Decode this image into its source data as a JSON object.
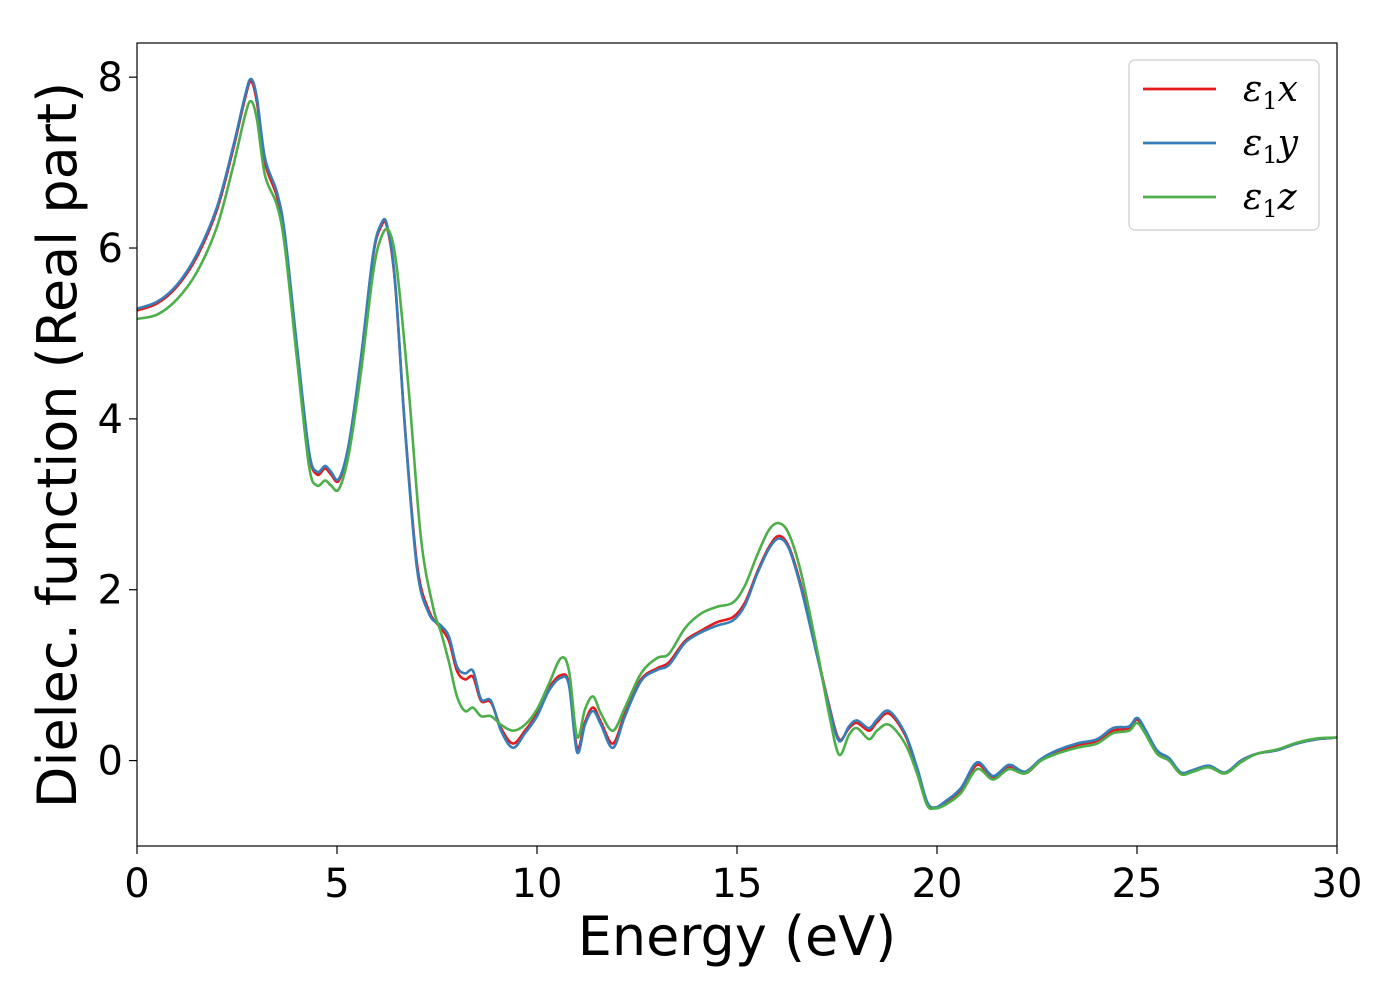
{
  "chart_data": {
    "type": "line",
    "title": "",
    "xlabel": "Energy (eV)",
    "ylabel": "Dielec. function (Real part)",
    "xlim": [
      0,
      30
    ],
    "ylim": [
      -1.0,
      8.4
    ],
    "xticks": [
      0,
      5,
      10,
      15,
      20,
      25,
      30
    ],
    "yticks": [
      0,
      2,
      4,
      6,
      8
    ],
    "xtick_labels": [
      "0",
      "5",
      "10",
      "15",
      "20",
      "25",
      "30"
    ],
    "ytick_labels": [
      "0",
      "2",
      "4",
      "6",
      "8"
    ],
    "grid": false,
    "legend_position": "top-right",
    "series": [
      {
        "name": "ε1x",
        "legend_base": "ε",
        "legend_sub": "1",
        "legend_suffix": "x",
        "color": "#e41a1c",
        "x": [
          0,
          0.5,
          1.0,
          1.5,
          2.0,
          2.4,
          2.7,
          2.85,
          3.0,
          3.2,
          3.5,
          3.7,
          4.0,
          4.3,
          4.5,
          4.7,
          4.85,
          5.05,
          5.3,
          5.6,
          5.9,
          6.1,
          6.25,
          6.45,
          6.7,
          7.0,
          7.3,
          7.6,
          7.8,
          8.0,
          8.2,
          8.4,
          8.6,
          8.85,
          9.1,
          9.4,
          9.7,
          10.0,
          10.3,
          10.6,
          10.8,
          11.0,
          11.2,
          11.4,
          11.6,
          11.9,
          12.2,
          12.6,
          13.0,
          13.3,
          13.7,
          14.1,
          14.5,
          14.9,
          15.2,
          15.5,
          15.8,
          16.05,
          16.3,
          16.6,
          17.0,
          17.3,
          17.55,
          17.8,
          18.0,
          18.3,
          18.5,
          18.8,
          19.2,
          19.5,
          19.75,
          19.95,
          20.2,
          20.6,
          21.0,
          21.4,
          21.8,
          22.2,
          22.6,
          23.0,
          23.5,
          24.0,
          24.4,
          24.8,
          25.0,
          25.2,
          25.5,
          25.8,
          26.1,
          26.4,
          26.8,
          27.2,
          27.6,
          28.0,
          28.5,
          29.0,
          29.5,
          30.0
        ],
        "y": [
          5.27,
          5.35,
          5.55,
          5.9,
          6.45,
          7.15,
          7.75,
          7.95,
          7.7,
          7.0,
          6.6,
          6.1,
          4.8,
          3.6,
          3.35,
          3.42,
          3.35,
          3.28,
          3.7,
          4.7,
          5.9,
          6.25,
          6.25,
          5.6,
          3.9,
          2.3,
          1.75,
          1.55,
          1.4,
          1.05,
          0.95,
          0.98,
          0.7,
          0.68,
          0.38,
          0.2,
          0.35,
          0.55,
          0.85,
          1.0,
          0.9,
          0.15,
          0.45,
          0.62,
          0.45,
          0.2,
          0.55,
          0.95,
          1.08,
          1.15,
          1.4,
          1.52,
          1.62,
          1.68,
          1.85,
          2.2,
          2.5,
          2.63,
          2.5,
          2.05,
          1.25,
          0.65,
          0.25,
          0.38,
          0.44,
          0.35,
          0.45,
          0.55,
          0.3,
          -0.1,
          -0.5,
          -0.55,
          -0.5,
          -0.35,
          -0.05,
          -0.2,
          -0.07,
          -0.15,
          0.0,
          0.1,
          0.18,
          0.23,
          0.35,
          0.38,
          0.48,
          0.35,
          0.1,
          0.02,
          -0.15,
          -0.12,
          -0.07,
          -0.15,
          0.0,
          0.08,
          0.12,
          0.2,
          0.25,
          0.27
        ]
      },
      {
        "name": "ε1y",
        "legend_base": "ε",
        "legend_sub": "1",
        "legend_suffix": "y",
        "color": "#377eb8",
        "x": [
          0,
          0.5,
          1.0,
          1.5,
          2.0,
          2.4,
          2.7,
          2.85,
          3.0,
          3.2,
          3.5,
          3.7,
          4.0,
          4.3,
          4.5,
          4.7,
          4.85,
          5.05,
          5.3,
          5.6,
          5.9,
          6.1,
          6.25,
          6.45,
          6.7,
          7.0,
          7.3,
          7.6,
          7.8,
          8.0,
          8.2,
          8.4,
          8.6,
          8.85,
          9.1,
          9.4,
          9.7,
          10.0,
          10.3,
          10.6,
          10.8,
          11.0,
          11.2,
          11.4,
          11.6,
          11.9,
          12.2,
          12.6,
          13.0,
          13.3,
          13.7,
          14.1,
          14.5,
          14.9,
          15.2,
          15.5,
          15.8,
          16.05,
          16.3,
          16.6,
          17.0,
          17.3,
          17.55,
          17.8,
          18.0,
          18.3,
          18.5,
          18.8,
          19.2,
          19.5,
          19.75,
          19.95,
          20.2,
          20.6,
          21.0,
          21.4,
          21.8,
          22.2,
          22.6,
          23.0,
          23.5,
          24.0,
          24.4,
          24.8,
          25.0,
          25.2,
          25.5,
          25.8,
          26.1,
          26.4,
          26.8,
          27.2,
          27.6,
          28.0,
          28.5,
          29.0,
          29.5,
          30.0
        ],
        "y": [
          5.29,
          5.37,
          5.57,
          5.93,
          6.48,
          7.18,
          7.78,
          7.98,
          7.75,
          7.05,
          6.65,
          6.15,
          4.85,
          3.62,
          3.38,
          3.45,
          3.38,
          3.3,
          3.72,
          4.72,
          5.92,
          6.28,
          6.27,
          5.62,
          3.88,
          2.25,
          1.72,
          1.58,
          1.45,
          1.1,
          1.02,
          1.05,
          0.72,
          0.7,
          0.35,
          0.15,
          0.32,
          0.52,
          0.82,
          0.97,
          0.88,
          0.1,
          0.42,
          0.58,
          0.42,
          0.15,
          0.52,
          0.93,
          1.06,
          1.12,
          1.38,
          1.5,
          1.58,
          1.64,
          1.82,
          2.18,
          2.48,
          2.6,
          2.48,
          2.02,
          1.23,
          0.63,
          0.23,
          0.4,
          0.47,
          0.38,
          0.48,
          0.58,
          0.32,
          -0.08,
          -0.48,
          -0.55,
          -0.48,
          -0.32,
          -0.02,
          -0.18,
          -0.05,
          -0.13,
          0.02,
          0.12,
          0.2,
          0.25,
          0.38,
          0.4,
          0.5,
          0.37,
          0.12,
          0.03,
          -0.14,
          -0.11,
          -0.06,
          -0.14,
          0.0,
          0.08,
          0.12,
          0.2,
          0.25,
          0.27
        ]
      },
      {
        "name": "ε1z",
        "legend_base": "ε",
        "legend_sub": "1",
        "legend_suffix": "z",
        "color": "#4daf4a",
        "x": [
          0,
          0.5,
          1.0,
          1.5,
          2.0,
          2.4,
          2.7,
          2.85,
          3.0,
          3.2,
          3.5,
          3.7,
          4.0,
          4.3,
          4.5,
          4.7,
          4.85,
          5.05,
          5.3,
          5.6,
          5.9,
          6.1,
          6.3,
          6.5,
          6.8,
          7.1,
          7.4,
          7.6,
          7.8,
          8.0,
          8.2,
          8.4,
          8.6,
          8.85,
          9.1,
          9.4,
          9.7,
          10.0,
          10.3,
          10.6,
          10.8,
          11.0,
          11.2,
          11.4,
          11.6,
          11.9,
          12.2,
          12.6,
          13.0,
          13.3,
          13.7,
          14.1,
          14.5,
          14.9,
          15.2,
          15.5,
          15.8,
          16.05,
          16.3,
          16.6,
          17.0,
          17.3,
          17.55,
          17.8,
          18.0,
          18.3,
          18.5,
          18.8,
          19.2,
          19.5,
          19.75,
          19.95,
          20.2,
          20.6,
          21.0,
          21.4,
          21.8,
          22.2,
          22.6,
          23.0,
          23.5,
          24.0,
          24.4,
          24.8,
          25.0,
          25.2,
          25.5,
          25.8,
          26.1,
          26.4,
          26.8,
          27.2,
          27.6,
          28.0,
          28.5,
          29.0,
          29.5,
          30.0
        ],
        "y": [
          5.17,
          5.22,
          5.4,
          5.72,
          6.25,
          6.95,
          7.55,
          7.72,
          7.5,
          6.85,
          6.5,
          6.0,
          4.7,
          3.45,
          3.22,
          3.28,
          3.22,
          3.18,
          3.6,
          4.55,
          5.7,
          6.12,
          6.2,
          5.75,
          4.3,
          2.6,
          1.8,
          1.5,
          1.15,
          0.75,
          0.58,
          0.62,
          0.52,
          0.52,
          0.42,
          0.35,
          0.42,
          0.6,
          0.9,
          1.2,
          1.05,
          0.28,
          0.6,
          0.75,
          0.55,
          0.35,
          0.62,
          1.02,
          1.2,
          1.25,
          1.55,
          1.72,
          1.8,
          1.85,
          2.05,
          2.4,
          2.7,
          2.78,
          2.65,
          2.2,
          1.3,
          0.55,
          0.07,
          0.3,
          0.38,
          0.25,
          0.35,
          0.42,
          0.2,
          -0.15,
          -0.52,
          -0.56,
          -0.52,
          -0.38,
          -0.1,
          -0.22,
          -0.1,
          -0.15,
          0.0,
          0.08,
          0.15,
          0.2,
          0.32,
          0.35,
          0.44,
          0.32,
          0.08,
          0.0,
          -0.16,
          -0.13,
          -0.08,
          -0.15,
          -0.02,
          0.08,
          0.13,
          0.21,
          0.26,
          0.27
        ]
      }
    ]
  }
}
